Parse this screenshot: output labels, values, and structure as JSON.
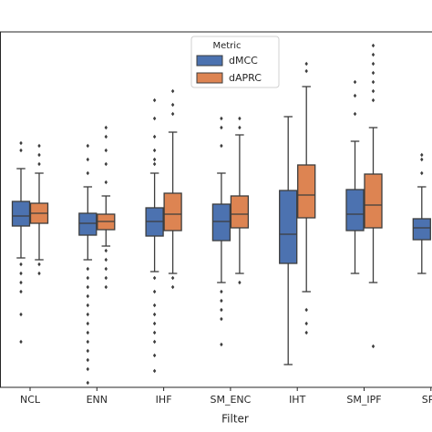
{
  "chart_data": {
    "type": "box",
    "x_label": "Filter",
    "categories": [
      "NCL",
      "ENN",
      "IHF",
      "SM_ENC",
      "IHT",
      "SM_IPF",
      "SPII"
    ],
    "legend_title": "Metric",
    "legend": "upper center",
    "ylim": [
      0,
      39
    ],
    "series": [
      {
        "name": "dMCC",
        "color": "#4c72b0",
        "values": [
          {
            "low": 14.2,
            "q1": 17.7,
            "median": 18.8,
            "q3": 20.4,
            "high": 24.0,
            "outliers": [
              26.8,
              26.0,
              13.5,
              12.5,
              11.5,
              10.5,
              8.0,
              5.0
            ]
          },
          {
            "low": 14.0,
            "q1": 16.7,
            "median": 18.0,
            "q3": 19.1,
            "high": 22.0,
            "outliers": [
              26.5,
              25.0,
              23.5,
              13.0,
              12.0,
              11.0,
              10.0,
              9.0,
              8.0,
              7.0,
              6.0,
              5.0,
              4.0,
              3.0,
              2.0,
              0.5
            ]
          },
          {
            "low": 12.7,
            "q1": 16.6,
            "median": 18.2,
            "q3": 19.7,
            "high": 23.5,
            "outliers": [
              31.5,
              29.5,
              27.5,
              26.0,
              25.0,
              24.5,
              12.0,
              10.5,
              9.0,
              8.0,
              7.0,
              6.0,
              5.0,
              3.5,
              1.8
            ]
          },
          {
            "low": 11.5,
            "q1": 16.1,
            "median": 18.2,
            "q3": 20.1,
            "high": 23.5,
            "outliers": [
              29.5,
              28.5,
              26.5,
              10.5,
              9.5,
              8.5,
              7.5,
              4.7
            ]
          },
          {
            "low": 2.5,
            "q1": 13.6,
            "median": 16.8,
            "q3": 21.6,
            "high": 29.7,
            "outliers": []
          },
          {
            "low": 12.5,
            "q1": 17.2,
            "median": 19.0,
            "q3": 21.7,
            "high": 27.0,
            "outliers": [
              33.5,
              32.0,
              30.0
            ]
          },
          {
            "low": 12.5,
            "q1": 16.2,
            "median": 17.5,
            "q3": 18.5,
            "high": 22.0,
            "outliers": [
              25.5,
              25.0,
              23.5
            ]
          }
        ]
      },
      {
        "name": "dAPRC",
        "color": "#dd8452",
        "values": [
          {
            "low": 14.0,
            "q1": 18.0,
            "median": 19.1,
            "q3": 20.2,
            "high": 23.5,
            "outliers": [
              26.5,
              25.5,
              24.5,
              13.5,
              12.5
            ]
          },
          {
            "low": 15.5,
            "q1": 17.3,
            "median": 18.2,
            "q3": 19.0,
            "high": 21.0,
            "outliers": [
              28.5,
              27.5,
              26.0,
              24.5,
              22.5,
              15.0,
              14.0,
              13.0,
              12.0,
              11.0
            ]
          },
          {
            "low": 12.5,
            "q1": 17.2,
            "median": 19.0,
            "q3": 21.3,
            "high": 28.0,
            "outliers": [
              32.5,
              31.0,
              30.0,
              12.0,
              11.0
            ]
          },
          {
            "low": 12.5,
            "q1": 17.5,
            "median": 19.0,
            "q3": 21.0,
            "high": 27.7,
            "outliers": [
              29.5,
              28.5,
              11.5
            ]
          },
          {
            "low": 10.5,
            "q1": 18.6,
            "median": 21.1,
            "q3": 24.4,
            "high": 33.0,
            "outliers": [
              35.5,
              34.7,
              8.5,
              7.0,
              6.0
            ]
          },
          {
            "low": 11.5,
            "q1": 17.5,
            "median": 20.0,
            "q3": 23.4,
            "high": 28.5,
            "outliers": [
              37.5,
              36.5,
              35.5,
              34.5,
              33.5,
              32.5,
              31.5,
              4.5
            ]
          },
          null
        ]
      }
    ]
  }
}
